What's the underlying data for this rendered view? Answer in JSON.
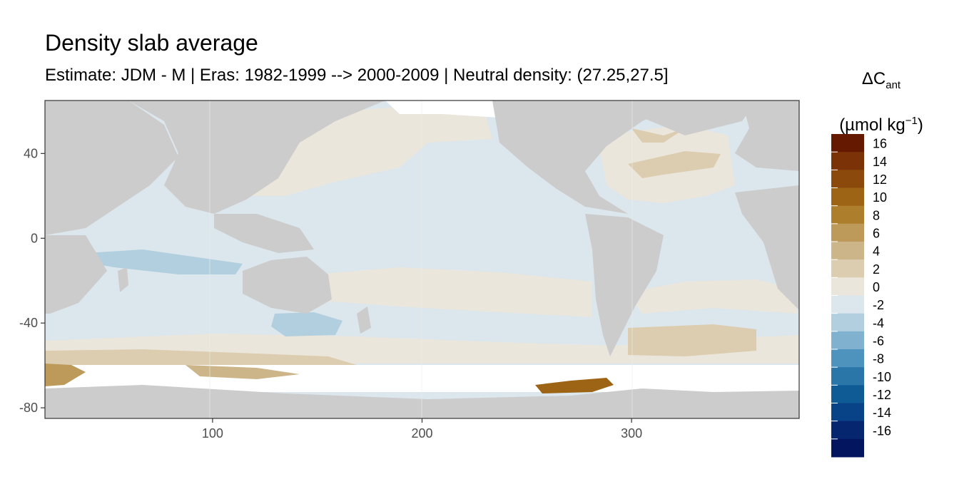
{
  "title": "Density slab average",
  "subtitle": "Estimate: JDM - M | Eras: 1982-1999 --> 2000-2009 | Neutral density: (27.25,27.5]",
  "legend": {
    "title_main": "ΔC",
    "title_sub": "ant",
    "unit_prefix": "(µmol kg",
    "unit_sup": "−1",
    "unit_suffix": ")",
    "bins": [
      {
        "label": "16",
        "color": "#651a00"
      },
      {
        "label": "14",
        "color": "#7a3206"
      },
      {
        "label": "12",
        "color": "#8b4a0c"
      },
      {
        "label": "10",
        "color": "#9c6414"
      },
      {
        "label": "8",
        "color": "#ad7e2c"
      },
      {
        "label": "6",
        "color": "#bd9a5a"
      },
      {
        "label": "4",
        "color": "#cdb58a"
      },
      {
        "label": "2",
        "color": "#ddcdb0"
      },
      {
        "label": "0",
        "color": "#ebe6dc"
      },
      {
        "label": "-2",
        "color": "#dce6ed"
      },
      {
        "label": "-4",
        "color": "#b2cfe0"
      },
      {
        "label": "-6",
        "color": "#80b2cf"
      },
      {
        "label": "-8",
        "color": "#4e93bd"
      },
      {
        "label": "-10",
        "color": "#2a76a9"
      },
      {
        "label": "-12",
        "color": "#0f5b95"
      },
      {
        "label": "-14",
        "color": "#084287"
      },
      {
        "label": "-16",
        "color": "#06266f"
      },
      {
        "label": "",
        "color": "#03155e"
      }
    ]
  },
  "axes": {
    "x_ticks": [
      100,
      200,
      300
    ],
    "y_ticks": [
      40,
      0,
      -40,
      -80
    ],
    "xlim": [
      20,
      380
    ],
    "ylim": [
      -85,
      65
    ]
  },
  "colors": {
    "land": "#cccccc",
    "no_data": "#ffffff",
    "panel_border": "#333333",
    "grid": "#ebebeb"
  }
}
